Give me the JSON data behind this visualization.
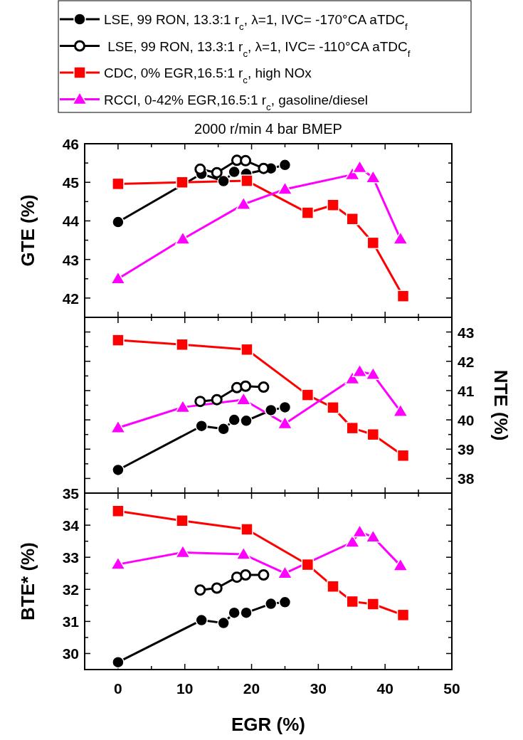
{
  "chart_data": [
    {
      "type": "line",
      "title": "2000 r/min 4 bar BMEP",
      "ylabel": "GTE (%)",
      "legend": "top",
      "tick_labels": "y",
      "xlim": [
        -5,
        50
      ],
      "xticks": [
        0,
        {
          "value": 5,
          "label": null
        },
        10,
        {
          "value": 15,
          "label": null
        },
        20,
        {
          "value": 25,
          "label": null
        },
        30,
        {
          "value": 35,
          "label": null
        },
        40,
        {
          "value": 45,
          "label": null
        },
        50
      ],
      "ylim": [
        41.5,
        46
      ],
      "yticks": [
        42,
        {
          "value": 42.5,
          "label": null
        },
        43,
        {
          "value": 43.5,
          "label": null
        },
        44,
        {
          "value": 44.5,
          "label": null
        },
        45,
        {
          "value": 45.5,
          "label": null
        },
        46
      ],
      "series": [
        {
          "name": "LSE, 99 RON, 13.3:1 r$_{c}$, λ=1, IVC= -170°CA aTDC$_{f}$",
          "color": "#000000",
          "marker": "circle",
          "x": [
            0,
            12.5,
            15.8,
            17.4,
            19.2,
            22.9,
            25.0
          ],
          "values": [
            43.97,
            45.22,
            45.03,
            45.27,
            45.22,
            45.36,
            45.45
          ]
        },
        {
          "name": " LSE, 99 RON, 13.3:1 r$_{c}$, λ=1, IVC= -110°CA aTDC$_{f}$",
          "color": "#000000",
          "marker": "circle",
          "x": [
            12.3,
            14.8,
            17.8,
            19.1,
            21.8
          ],
          "values": [
            45.34,
            45.25,
            45.57,
            45.56,
            45.36
          ]
        },
        {
          "name": "CDC, 0% EGR,16.5:1 r$_{c}$, high NOx",
          "color": "#ff0000",
          "marker": "square",
          "x": [
            0,
            9.6,
            19.3,
            28.4,
            32.2,
            35.1,
            38.2,
            42.7
          ],
          "values": [
            44.96,
            45.0,
            45.04,
            44.21,
            44.41,
            44.05,
            43.43,
            42.05
          ]
        },
        {
          "name": "RCCI, 0-42% EGR,16.5:1 r$_{c}$, gasoline/diesel",
          "color": "#ff00ff",
          "marker": "triangle",
          "x": [
            0,
            9.7,
            18.8,
            25.0,
            35.1,
            36.2,
            38.2,
            42.3
          ],
          "values": [
            42.5,
            43.53,
            44.43,
            44.82,
            45.2,
            45.38,
            45.12,
            43.53
          ]
        }
      ]
    },
    {
      "type": "line",
      "y2label": "NTE (%)",
      "tick_labels": "y",
      "xlim": [
        -5,
        50
      ],
      "xticks": [
        0,
        {
          "value": 5,
          "label": null
        },
        10,
        {
          "value": 15,
          "label": null
        },
        20,
        {
          "value": 25,
          "label": null
        },
        30,
        {
          "value": 35,
          "label": null
        },
        40,
        {
          "value": 45,
          "label": null
        },
        50
      ],
      "y2lim": [
        37.5,
        43.5
      ],
      "y2ticks": [
        38,
        {
          "value": 38.5,
          "label": null
        },
        39,
        {
          "value": 39.5,
          "label": null
        },
        40,
        {
          "value": 40.5,
          "label": null
        },
        41,
        {
          "value": 41.5,
          "label": null
        },
        42,
        {
          "value": 42.5,
          "label": null
        },
        43
      ],
      "series": [
        {
          "color": "#000000",
          "marker": "circle",
          "axis": "y2",
          "x": [
            0,
            12.5,
            15.8,
            17.4,
            19.2,
            22.9,
            25.0
          ],
          "values": [
            38.29,
            39.79,
            39.69,
            40.0,
            39.97,
            40.33,
            40.43
          ]
        },
        {
          "color": "#000000",
          "marker": "circle",
          "axis": "y2",
          "x": [
            12.3,
            14.8,
            17.8,
            19.1,
            21.8
          ],
          "values": [
            40.63,
            40.69,
            41.1,
            41.15,
            41.12
          ]
        },
        {
          "color": "#ff0000",
          "marker": "square",
          "axis": "y2",
          "x": [
            0,
            9.6,
            19.3,
            28.4,
            32.2,
            35.1,
            38.2,
            42.7
          ],
          "values": [
            42.72,
            42.57,
            42.4,
            40.85,
            40.42,
            39.72,
            39.5,
            38.78
          ]
        },
        {
          "color": "#ff00ff",
          "marker": "triangle",
          "axis": "y2",
          "x": [
            0,
            9.7,
            18.8,
            25.0,
            35.1,
            36.2,
            38.2,
            42.3
          ],
          "values": [
            39.73,
            40.43,
            40.69,
            39.87,
            41.4,
            41.65,
            41.55,
            40.29
          ]
        }
      ]
    },
    {
      "type": "line",
      "xlabel": "EGR (%)",
      "ylabel": "BTE* (%)",
      "xlim": [
        -5,
        50
      ],
      "xticks": [
        0,
        {
          "value": 5,
          "label": null
        },
        10,
        {
          "value": 15,
          "label": null
        },
        20,
        {
          "value": 25,
          "label": null
        },
        30,
        {
          "value": 35,
          "label": null
        },
        40,
        {
          "value": 45,
          "label": null
        },
        50
      ],
      "ylim": [
        29.5,
        35
      ],
      "yticks": [
        30,
        {
          "value": 30.5,
          "label": null
        },
        31,
        {
          "value": 31.5,
          "label": null
        },
        32,
        {
          "value": 32.5,
          "label": null
        },
        33,
        {
          "value": 33.5,
          "label": null
        },
        34,
        {
          "value": 34.5,
          "label": null
        },
        35
      ],
      "series": [
        {
          "color": "#000000",
          "marker": "circle",
          "x": [
            0,
            12.5,
            15.8,
            17.4,
            19.2,
            22.9,
            25.0
          ],
          "values": [
            29.73,
            31.04,
            30.95,
            31.27,
            31.27,
            31.55,
            31.6
          ]
        },
        {
          "color": "#000000",
          "marker": "circle",
          "x": [
            12.3,
            14.8,
            17.8,
            19.1,
            21.8
          ],
          "values": [
            31.98,
            32.04,
            32.38,
            32.45,
            32.45
          ]
        },
        {
          "color": "#ff0000",
          "marker": "square",
          "x": [
            0,
            9.6,
            19.3,
            28.4,
            32.2,
            35.1,
            38.2,
            42.7
          ],
          "values": [
            34.44,
            34.14,
            33.87,
            32.77,
            32.09,
            31.62,
            31.54,
            31.2
          ]
        },
        {
          "color": "#ff00ff",
          "marker": "triangle",
          "x": [
            0,
            9.7,
            18.8,
            25.0,
            35.1,
            36.2,
            38.2,
            42.3
          ],
          "values": [
            32.78,
            33.15,
            33.09,
            32.5,
            33.47,
            33.79,
            33.63,
            32.74
          ]
        }
      ]
    }
  ]
}
